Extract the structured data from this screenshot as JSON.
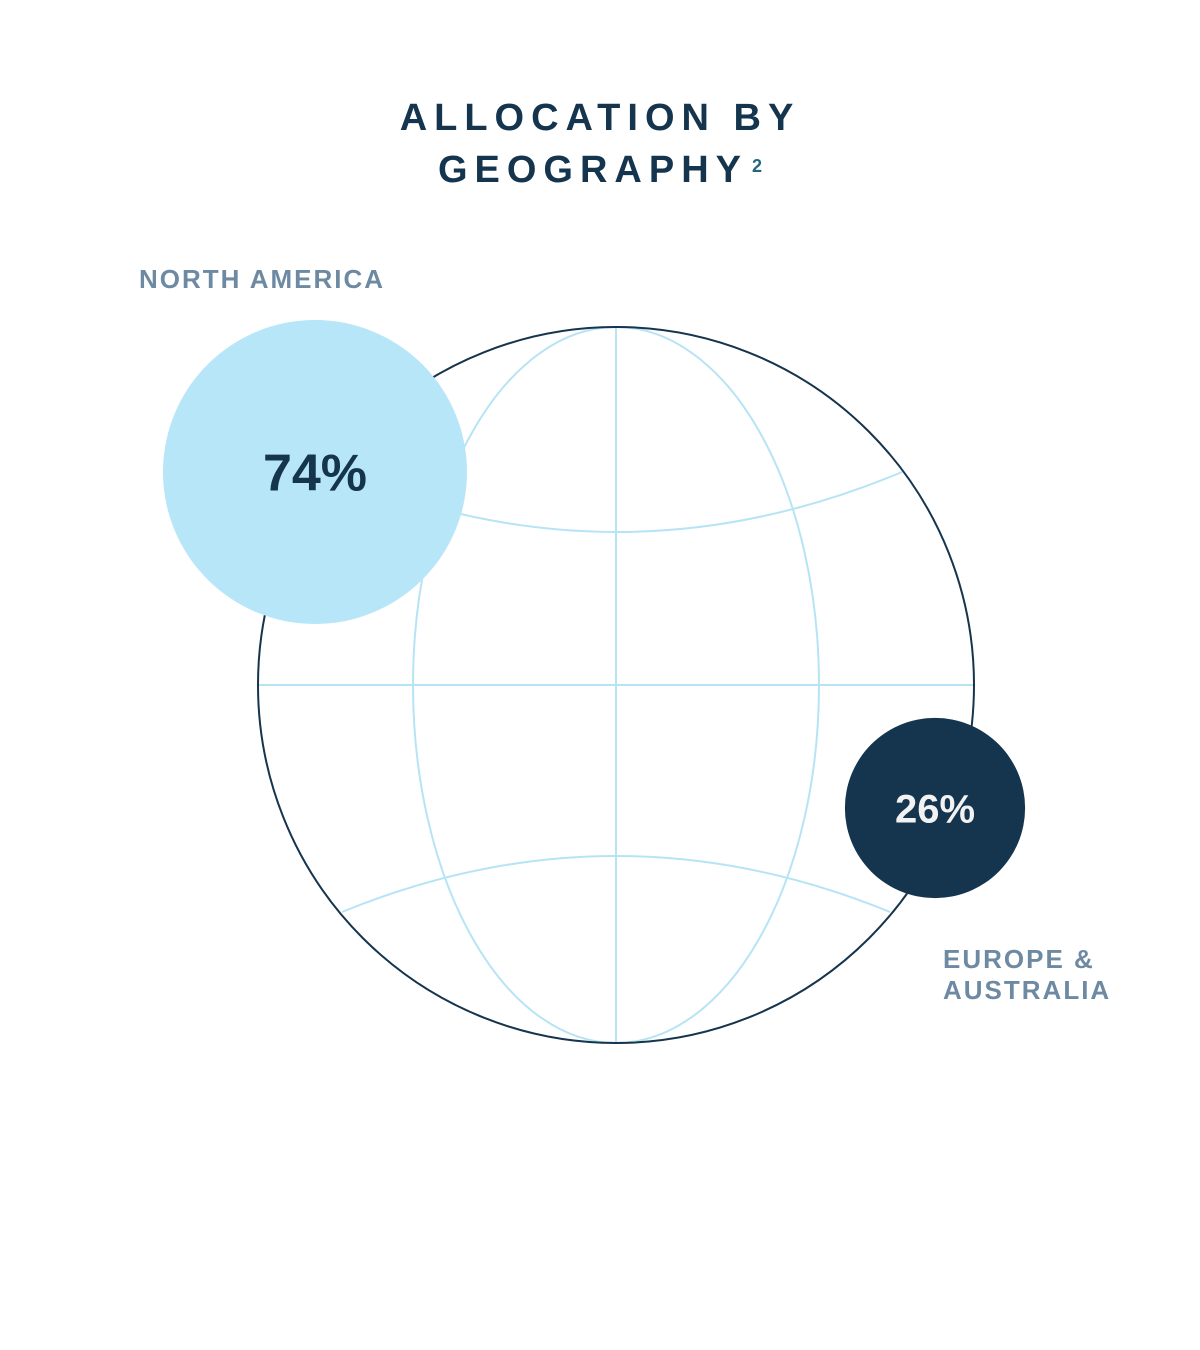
{
  "title": {
    "line1": "ALLOCATION BY",
    "line2": "GEOGRAPHY",
    "footnote": "2"
  },
  "colors": {
    "title": "#15344d",
    "label": "#6e8aa3",
    "globe_outline": "#15344d",
    "globe_grid": "#b7e4f5",
    "north_america": "#b7e6f9",
    "europe_australia": "#15344d"
  },
  "chart_data": {
    "type": "pie",
    "categories": [
      "NORTH AMERICA",
      "EUROPE & AUSTRALIA"
    ],
    "values": [
      74,
      26
    ],
    "value_labels": [
      "74%",
      "26%"
    ],
    "title": "ALLOCATION BY GEOGRAPHY"
  },
  "labels": {
    "north_america": "NORTH AMERICA",
    "europe_line1": "EUROPE &",
    "europe_line2": "AUSTRALIA"
  }
}
